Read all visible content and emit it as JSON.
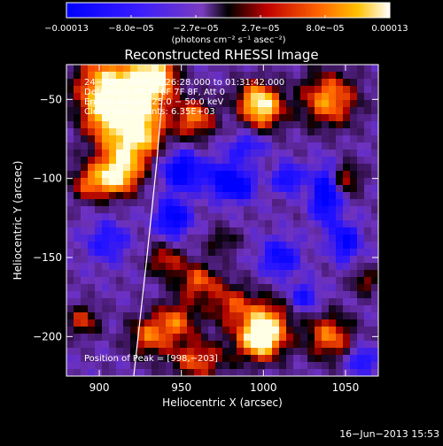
{
  "chart_data": {
    "type": "heatmap",
    "title": "Reconstructed RHESSI Image",
    "xlabel": "Heliocentric X (arcsec)",
    "ylabel": "Heliocentric Y (arcsec)",
    "xlim": [
      880,
      1070
    ],
    "ylim": [
      -225,
      -28
    ],
    "x_ticks": [
      900,
      950,
      1000,
      1050
    ],
    "x_tick_labels": [
      "900",
      "950",
      "1000",
      "1050"
    ],
    "y_ticks": [
      -50,
      -100,
      -150,
      -200
    ],
    "y_tick_labels": [
      "−50",
      "−100",
      "−150",
      "−200"
    ],
    "colorbar": {
      "min": -0.00013,
      "max": 0.00013,
      "tick_labels": [
        "−0.00013",
        "−8.0e−05",
        "−2.7e−05",
        "2.7e−05",
        "8.0e−05",
        "0.00013"
      ],
      "units_label": "(photons cm⁻² s⁻¹ asec⁻²)"
    },
    "annotations": [
      "24−Apr−2004 01:26:28.000 to 01:31:42.000",
      "Detectors: 4F 5F 6F 7F 8F, Att 0",
      "Energy Range: 25.0 − 50.0 keV",
      "Clean     Total counts: 6.35E+03"
    ],
    "peak_label": "Position of Peak = [998,−203]",
    "peak": {
      "x": 998,
      "y": -203
    },
    "limb_curve": [
      [
        940,
        -28
      ],
      [
        935,
        -90
      ],
      [
        929,
        -150
      ],
      [
        921,
        -225
      ]
    ],
    "blobs": [
      {
        "x": 905,
        "y": -40,
        "sx": 14,
        "sy": 14,
        "a": 1.0
      },
      {
        "x": 903,
        "y": -60,
        "sx": 10,
        "sy": 10,
        "a": 0.7
      },
      {
        "x": 925,
        "y": -48,
        "sx": 12,
        "sy": 12,
        "a": 0.95
      },
      {
        "x": 935,
        "y": -35,
        "sx": 8,
        "sy": 8,
        "a": 1.1
      },
      {
        "x": 916,
        "y": -80,
        "sx": 14,
        "sy": 12,
        "a": 0.7
      },
      {
        "x": 912,
        "y": -98,
        "sx": 9,
        "sy": 9,
        "a": 1.0
      },
      {
        "x": 895,
        "y": -103,
        "sx": 9,
        "sy": 8,
        "a": 0.7
      },
      {
        "x": 925,
        "y": -70,
        "sx": 10,
        "sy": 10,
        "a": 0.7
      },
      {
        "x": 958,
        "y": -62,
        "sx": 9,
        "sy": 9,
        "a": 0.8
      },
      {
        "x": 1000,
        "y": -57,
        "sx": 9,
        "sy": 9,
        "a": 0.9
      },
      {
        "x": 995,
        "y": -48,
        "sx": 9,
        "sy": 8,
        "a": 0.6
      },
      {
        "x": 1040,
        "y": -50,
        "sx": 12,
        "sy": 12,
        "a": 0.9
      },
      {
        "x": 960,
        "y": -165,
        "sx": 9,
        "sy": 8,
        "a": 0.7
      },
      {
        "x": 940,
        "y": -152,
        "sx": 8,
        "sy": 7,
        "a": 0.6
      },
      {
        "x": 947,
        "y": -190,
        "sx": 9,
        "sy": 9,
        "a": 0.7
      },
      {
        "x": 980,
        "y": -180,
        "sx": 10,
        "sy": 10,
        "a": 0.6
      },
      {
        "x": 998,
        "y": -203,
        "sx": 10,
        "sy": 9,
        "a": 1.1
      },
      {
        "x": 1002,
        "y": -190,
        "sx": 10,
        "sy": 10,
        "a": 0.8
      },
      {
        "x": 1040,
        "y": -200,
        "sx": 10,
        "sy": 10,
        "a": 0.8
      },
      {
        "x": 930,
        "y": -200,
        "sx": 9,
        "sy": 9,
        "a": 0.7
      },
      {
        "x": 890,
        "y": -190,
        "sx": 7,
        "sy": 7,
        "a": 0.6
      },
      {
        "x": 1050,
        "y": -100,
        "sx": 7,
        "sy": 7,
        "a": 0.6
      },
      {
        "x": 960,
        "y": -215,
        "sx": 12,
        "sy": 9,
        "a": 0.7
      },
      {
        "x": 1062,
        "y": -165,
        "sx": 6,
        "sy": 6,
        "a": 0.5
      },
      {
        "x": 975,
        "y": -140,
        "sx": 7,
        "sy": 6,
        "a": 0.4
      },
      {
        "x": 950,
        "y": -95,
        "sx": 8,
        "sy": 8,
        "a": -1.0
      },
      {
        "x": 945,
        "y": -125,
        "sx": 7,
        "sy": 8,
        "a": -0.9
      },
      {
        "x": 1038,
        "y": -110,
        "sx": 6,
        "sy": 12,
        "a": -1.0
      },
      {
        "x": 1050,
        "y": -140,
        "sx": 6,
        "sy": 8,
        "a": -0.8
      },
      {
        "x": 975,
        "y": -100,
        "sx": 8,
        "sy": 8,
        "a": -0.7
      },
      {
        "x": 1010,
        "y": -150,
        "sx": 8,
        "sy": 8,
        "a": -0.7
      },
      {
        "x": 985,
        "y": -105,
        "sx": 7,
        "sy": 6,
        "a": -0.8
      },
      {
        "x": 905,
        "y": -140,
        "sx": 9,
        "sy": 9,
        "a": -0.5
      },
      {
        "x": 1015,
        "y": -100,
        "sx": 6,
        "sy": 6,
        "a": -0.7
      },
      {
        "x": 1060,
        "y": -215,
        "sx": 6,
        "sy": 6,
        "a": -0.6
      },
      {
        "x": 990,
        "y": -80,
        "sx": 8,
        "sy": 6,
        "a": -0.5
      },
      {
        "x": 1025,
        "y": -175,
        "sx": 6,
        "sy": 6,
        "a": -0.6
      }
    ]
  },
  "footer": {
    "date": "16−Jun−2013 15:53"
  }
}
